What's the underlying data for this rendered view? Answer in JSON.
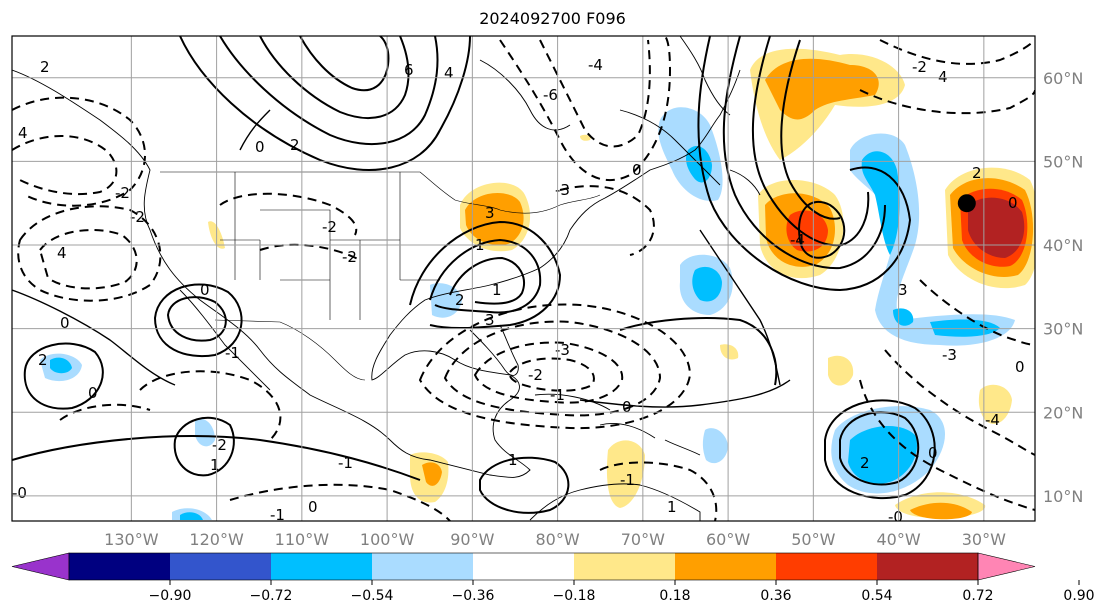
{
  "title": "2024092700 F096",
  "map": {
    "projection": "PlateCarree",
    "lon_range": [
      -144,
      -24
    ],
    "lat_range": [
      7,
      65
    ],
    "grid": true,
    "lon_ticks": [
      "130°W",
      "120°W",
      "110°W",
      "100°W",
      "90°W",
      "80°W",
      "70°W",
      "60°W",
      "50°W",
      "40°W",
      "30°W"
    ],
    "lat_ticks": [
      "60°N",
      "50°N",
      "40°N",
      "30°N",
      "20°N",
      "10°N"
    ],
    "contour_labels": [
      "2",
      "4",
      "-2",
      "0",
      "-2",
      "3",
      "1",
      "6",
      "4",
      "-6",
      "-4",
      "0",
      "2",
      "-2",
      "1",
      "3",
      "-3",
      "-1",
      "-2",
      "0",
      "-1",
      "3",
      "-4",
      "-2",
      "4",
      "2",
      "0",
      "4",
      "-2",
      "2",
      "0",
      "-3",
      "-4",
      "2",
      "0",
      "1",
      "-1",
      "1",
      "0",
      "-1",
      "-0",
      "0",
      "-1",
      "-2",
      "0",
      "2",
      "-3",
      "0",
      "-0",
      "1"
    ],
    "marker": {
      "label": "point",
      "lon": -32,
      "lat": 45
    }
  },
  "colorbar": {
    "tick_labels": [
      "−0.90",
      "−0.72",
      "−0.54",
      "−0.36",
      "−0.18",
      "0.18",
      "0.36",
      "0.54",
      "0.72",
      "0.90"
    ],
    "colors": [
      "#9933cc",
      "#000080",
      "#3355cc",
      "#00bfff",
      "#aadcff",
      "#ffffff",
      "#ffe88a",
      "#ff9f00",
      "#ff3d00",
      "#b22222",
      "#ff85b4"
    ],
    "extend": "both"
  },
  "colors": {
    "pos_light": "#ffe88a",
    "pos_mid": "#ff9f00",
    "pos_strong": "#ff3d00",
    "pos_max": "#b22222",
    "neg_light": "#aadcff",
    "neg_mid": "#00bfff",
    "neg_strong": "#3355cc"
  }
}
